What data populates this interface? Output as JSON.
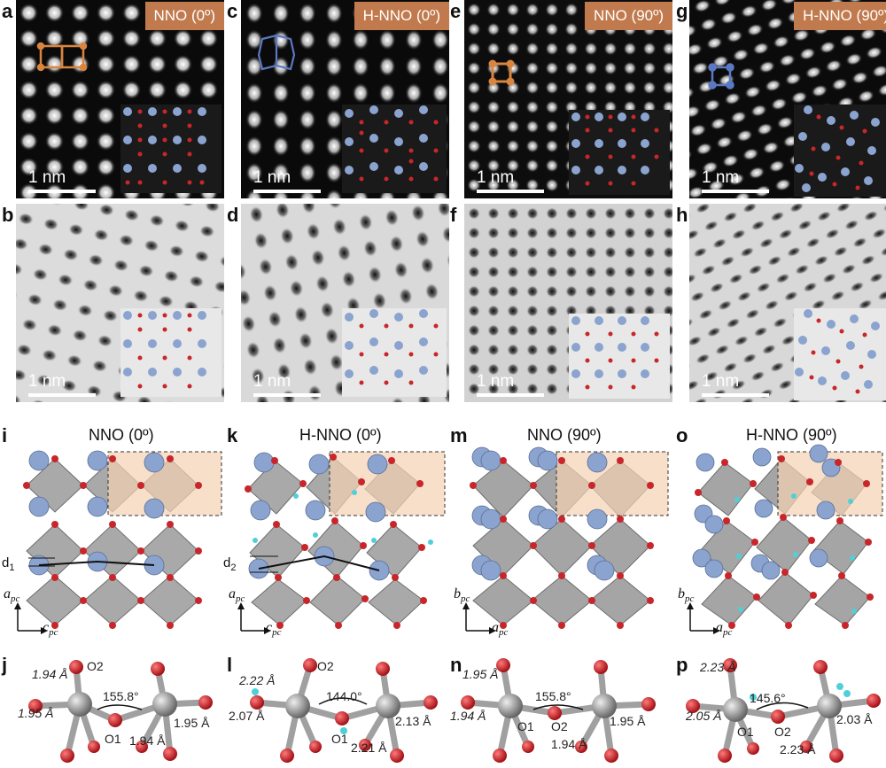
{
  "panels": {
    "a": {
      "letter": "a",
      "tag": "NNO (0º)",
      "scale": "1 nm"
    },
    "b": {
      "letter": "b",
      "scale": "1 nm"
    },
    "c": {
      "letter": "c",
      "tag": "H-NNO (0º)",
      "scale": "1 nm"
    },
    "d": {
      "letter": "d",
      "scale": "1 nm"
    },
    "e": {
      "letter": "e",
      "tag": "NNO (90º)",
      "scale": "1 nm"
    },
    "f": {
      "letter": "f",
      "scale": "1 nm"
    },
    "g": {
      "letter": "g",
      "tag": "H-NNO (90º)",
      "scale": "1 nm"
    },
    "h": {
      "letter": "h",
      "scale": "1 nm"
    },
    "i": {
      "letter": "i",
      "title": "NNO (0º)",
      "d": "d1",
      "ax_v": "a",
      "ax_v_sub": "pc",
      "ax_h": "c",
      "ax_h_sub": "pc"
    },
    "k": {
      "letter": "k",
      "title": "H-NNO (0º)",
      "d": "d2",
      "ax_v": "a",
      "ax_v_sub": "pc",
      "ax_h": "c",
      "ax_h_sub": "pc"
    },
    "m": {
      "letter": "m",
      "title": "NNO (90º)",
      "ax_v": "b",
      "ax_v_sub": "pc",
      "ax_h": "a",
      "ax_h_sub": "pc"
    },
    "o": {
      "letter": "o",
      "title": "H-NNO (90º)",
      "ax_v": "b",
      "ax_v_sub": "pc",
      "ax_h": "a",
      "ax_h_sub": "pc"
    },
    "j": {
      "letter": "j",
      "b1": "1.94 Å",
      "b2": "1.95 Å",
      "b3": "1.94 Å",
      "b4": "1.95 Å",
      "angle": "155.8°",
      "o_top": "O2",
      "o_mid": "O1"
    },
    "l": {
      "letter": "l",
      "b1": "2.22 Å",
      "b2": "2.07 Å",
      "b3": "2.21 Å",
      "b4": "2.13 Å",
      "angle": "144.0°",
      "o_top": "O2",
      "o_mid": "O1"
    },
    "n": {
      "letter": "n",
      "b1": "1.95 Å",
      "b2": "1.94 Å",
      "b3": "1.94 Å",
      "b4": "1.95 Å",
      "angle": "155.8°",
      "o_left": "O1",
      "o_right": "O2"
    },
    "p": {
      "letter": "p",
      "b1": "2.23 Å",
      "b2": "2.05 Å",
      "b3": "2.23 Å",
      "b4": "2.03 Å",
      "angle": "145.6°",
      "o_left": "O1",
      "o_right": "O2"
    }
  },
  "colors": {
    "nd": "#8aa3cf",
    "oxygen": "#c8262a",
    "ni": "#9a9a9a",
    "hydrogen": "#4fd0d8",
    "highlight": "#f3d2b4",
    "tag": "#c17a4e",
    "marker_nno": "#d9853f",
    "marker_hnno": "#5b78c2"
  }
}
